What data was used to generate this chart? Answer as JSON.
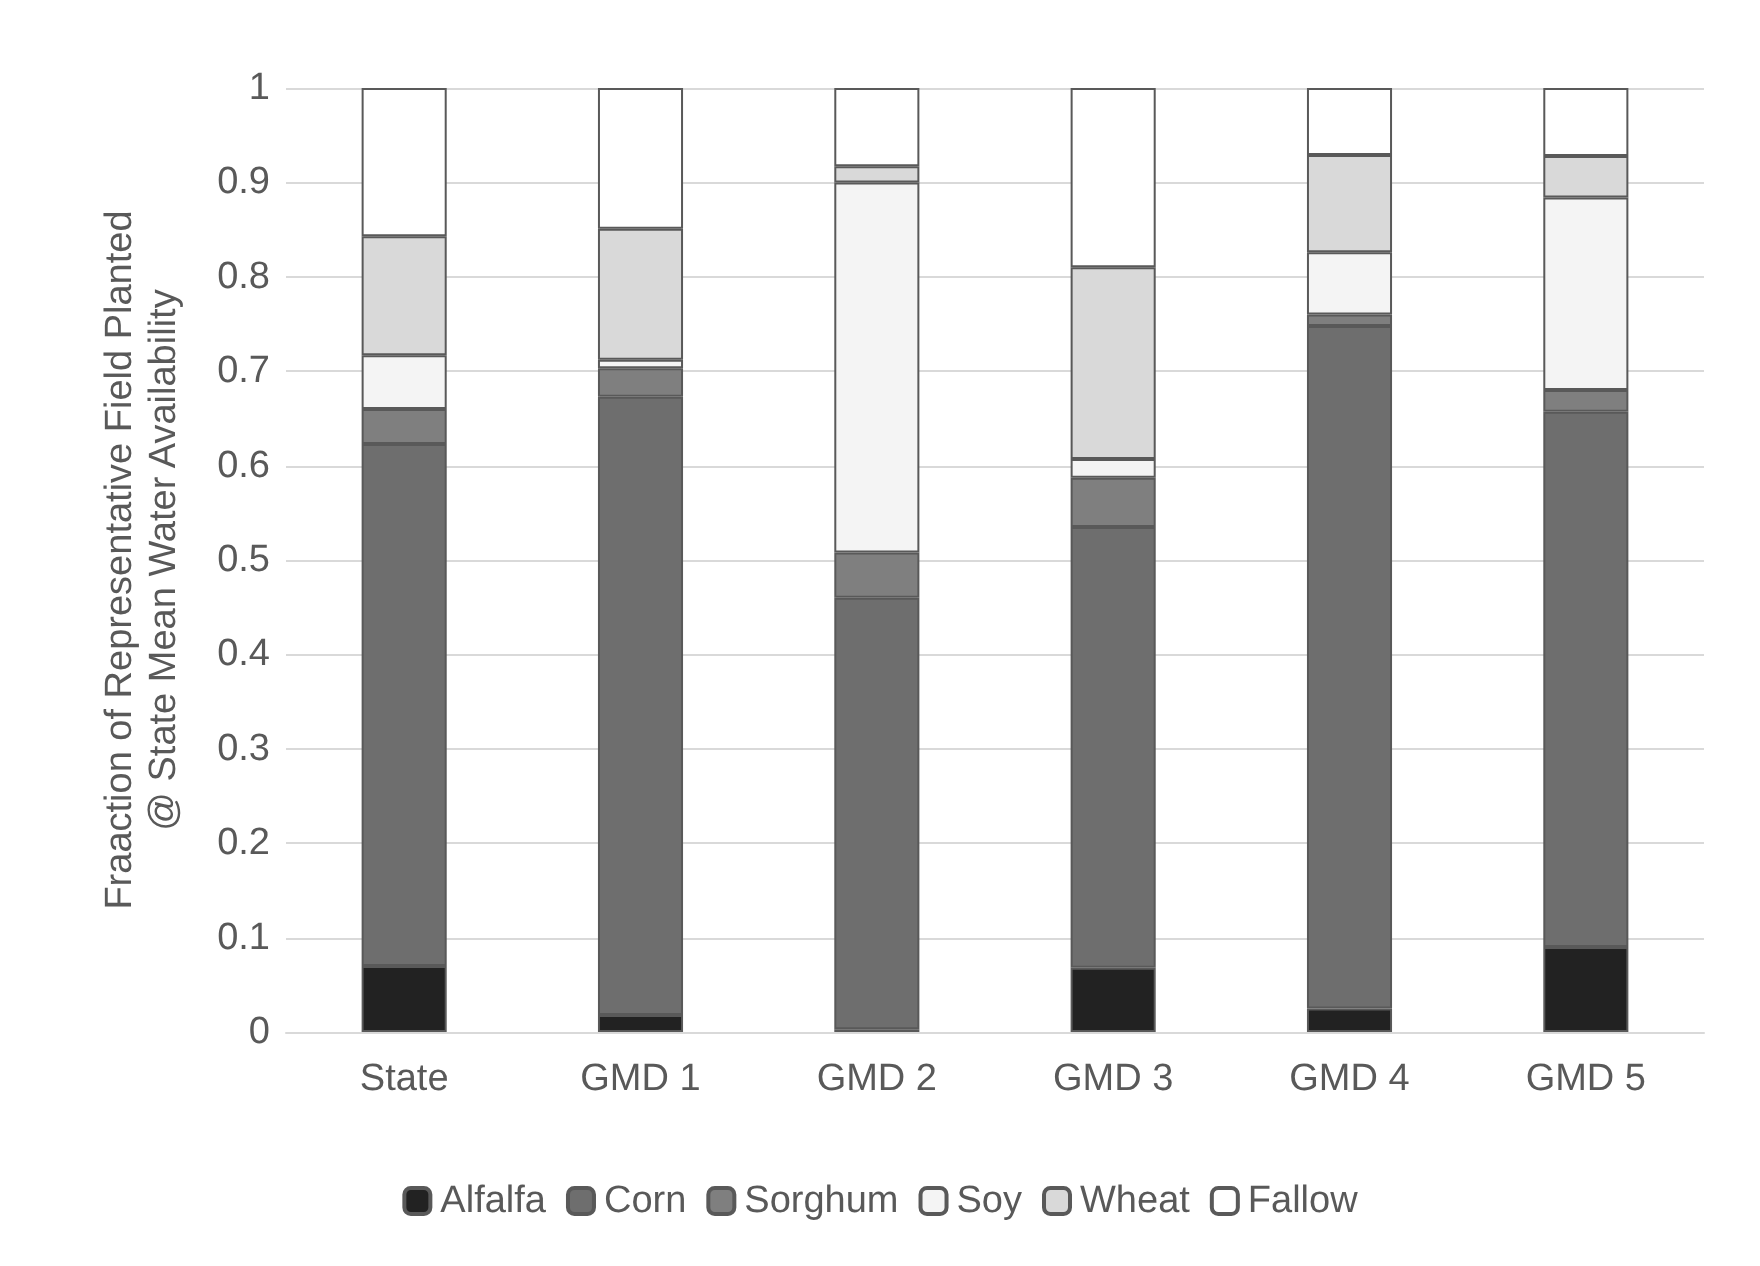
{
  "chart_data": {
    "type": "bar",
    "stacked": true,
    "ylabel": "Fraaction of Representative Field Planted\n@ State Mean Water Availability",
    "categories": [
      "State",
      "GMD 1",
      "GMD 2",
      "GMD 3",
      "GMD 4",
      "GMD 5"
    ],
    "series": [
      {
        "name": "Alfalfa",
        "color": "#222222",
        "values": [
          0.07,
          0.018,
          0.003,
          0.068,
          0.025,
          0.09
        ]
      },
      {
        "name": "Corn",
        "color": "#6e6e6e",
        "values": [
          0.553,
          0.655,
          0.457,
          0.467,
          0.723,
          0.567
        ]
      },
      {
        "name": "Sorghum",
        "color": "#7f7f7f",
        "values": [
          0.037,
          0.03,
          0.048,
          0.052,
          0.012,
          0.023
        ]
      },
      {
        "name": "Soy",
        "color": "#f4f4f4",
        "values": [
          0.057,
          0.009,
          0.392,
          0.02,
          0.066,
          0.204
        ]
      },
      {
        "name": "Wheat",
        "color": "#d9d9d9",
        "values": [
          0.126,
          0.139,
          0.017,
          0.203,
          0.103,
          0.044
        ]
      },
      {
        "name": "Fallow",
        "color": "#ffffff",
        "values": [
          0.157,
          0.149,
          0.083,
          0.19,
          0.071,
          0.072
        ]
      }
    ],
    "ylim": [
      0,
      1
    ],
    "yticks": [
      0,
      0.1,
      0.2,
      0.3,
      0.4,
      0.5,
      0.6,
      0.7,
      0.8,
      0.9,
      1
    ],
    "grid": "y",
    "legend": "bottom"
  }
}
